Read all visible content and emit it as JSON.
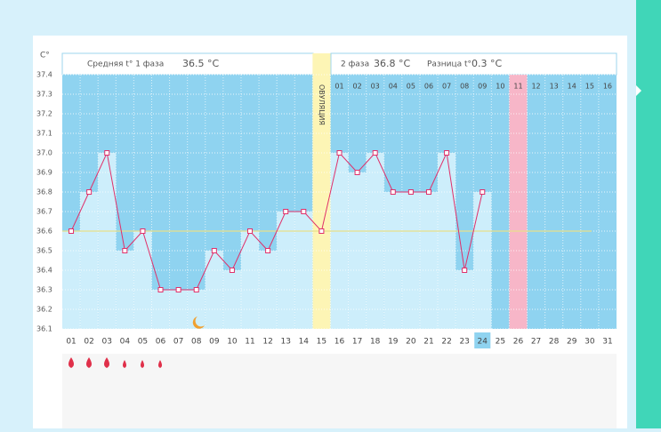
{
  "chart_data": {
    "type": "bbt",
    "y_unit": "C°",
    "phase1_label": "Средняя t° 1 фаза",
    "phase1_value": "36.5 °C",
    "phase2_label": "2 фаза",
    "phase2_value": "36.8 °C",
    "diff_label": "Разница t°",
    "diff_value": "0.3 °C",
    "ovulation_label": "ОВУЛЯЦИЯ",
    "ovulation_index": 14,
    "marked_index": 25,
    "today_index": 23,
    "cover_line": 36.6,
    "categories": [
      "01",
      "02",
      "03",
      "04",
      "05",
      "06",
      "07",
      "08",
      "09",
      "10",
      "11",
      "12",
      "13",
      "14",
      "15",
      "16",
      "17",
      "18",
      "19",
      "20",
      "21",
      "22",
      "23",
      "24",
      "25",
      "26",
      "27",
      "28",
      "29",
      "30",
      "31"
    ],
    "phase2_days": [
      "01",
      "02",
      "03",
      "04",
      "05",
      "06",
      "07",
      "08",
      "09",
      "10",
      "11",
      "12",
      "13",
      "14",
      "15",
      "16"
    ],
    "values": [
      36.6,
      36.8,
      37.0,
      36.5,
      36.6,
      36.3,
      36.3,
      36.3,
      36.5,
      36.4,
      36.6,
      36.5,
      36.7,
      36.7,
      36.6,
      37.0,
      36.9,
      37.0,
      36.8,
      36.8,
      36.8,
      37.0,
      36.4,
      36.8,
      null,
      null,
      null,
      null,
      null,
      null,
      null
    ],
    "ylim": [
      36.1,
      37.4
    ],
    "yticks": [
      36.1,
      36.2,
      36.3,
      36.4,
      36.5,
      36.6,
      36.7,
      36.8,
      36.9,
      {
        "value": 37,
        "label": "37.0"
      },
      37.1,
      37.2,
      37.3,
      37.4
    ],
    "line_color": "#e0306a",
    "bar_color": "#cdeefb",
    "plot_color": "#8fd3f0"
  }
}
